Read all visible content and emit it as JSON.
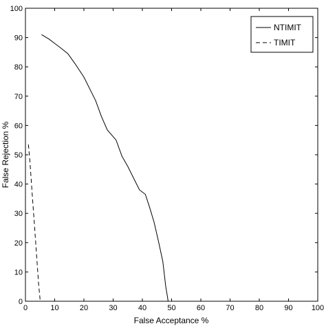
{
  "chart_data": {
    "type": "line",
    "xlabel": "False Acceptance %",
    "ylabel": "False Rejection %",
    "xlim": [
      0,
      100
    ],
    "ylim": [
      0,
      100
    ],
    "xticks": [
      0,
      10,
      20,
      30,
      40,
      50,
      60,
      70,
      80,
      90,
      100
    ],
    "yticks": [
      0,
      10,
      20,
      30,
      40,
      50,
      60,
      70,
      80,
      90,
      100
    ],
    "grid": false,
    "legend_position": "top-right",
    "series": [
      {
        "name": "NTIMIT",
        "style": "solid",
        "color": "#000000",
        "x": [
          5.5,
          8,
          10,
          12,
          14.5,
          17,
          20,
          22,
          24,
          26,
          28,
          31,
          33,
          35,
          37,
          39,
          41,
          42.5,
          44,
          45.5,
          47,
          48,
          48.6,
          48.8
        ],
        "y": [
          91,
          89.5,
          88,
          86.5,
          84.5,
          81,
          76.5,
          72.5,
          68.5,
          63,
          58.5,
          55,
          49.5,
          46,
          42,
          38,
          36.5,
          32,
          27,
          20.5,
          13.5,
          5,
          1.5,
          0
        ]
      },
      {
        "name": "TIMIT",
        "style": "dashed",
        "color": "#000000",
        "x": [
          1,
          1.5,
          2,
          2.5,
          3,
          3.5,
          4,
          4.5,
          5
        ],
        "y": [
          53.5,
          48,
          41,
          34,
          27,
          20,
          13,
          6,
          0.5
        ]
      }
    ]
  }
}
